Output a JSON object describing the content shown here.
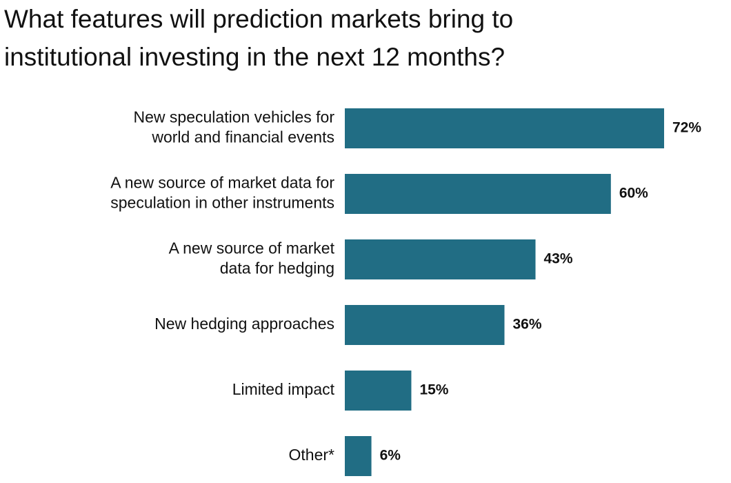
{
  "chart_data": {
    "type": "bar",
    "orientation": "horizontal",
    "title": [
      "What features will prediction markets bring to",
      "institutional investing in the next 12 months?"
    ],
    "categories": [
      [
        "New speculation vehicles for",
        "world and financial events"
      ],
      [
        "A new source of market data for",
        "speculation in other instruments"
      ],
      [
        "A new source of market",
        "data for hedging"
      ],
      [
        "New hedging approaches"
      ],
      [
        "Limited impact"
      ],
      [
        "Other*"
      ]
    ],
    "values": [
      72,
      60,
      43,
      36,
      15,
      6
    ],
    "value_labels": [
      "72%",
      "60%",
      "43%",
      "36%",
      "15%",
      "6%"
    ],
    "color": "#216d84"
  }
}
